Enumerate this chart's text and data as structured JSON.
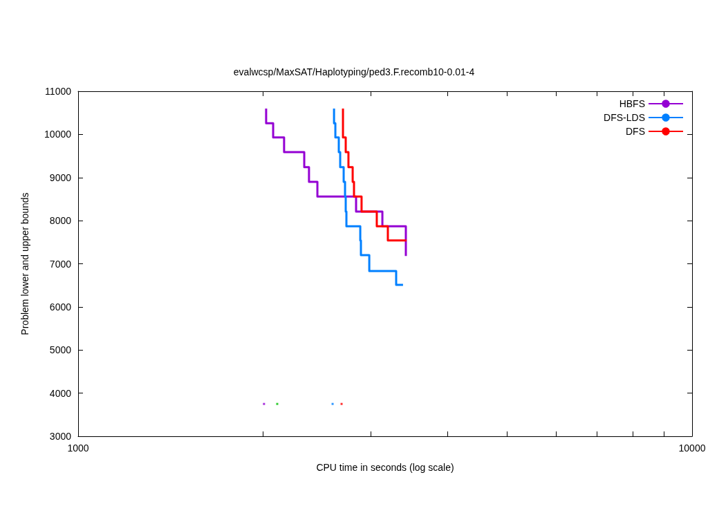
{
  "chart_data": {
    "type": "step",
    "title": "evalwcsp/MaxSAT/Haplotyping/ped3.F.recomb10-0.01-4",
    "xlabel": "CPU time in seconds (log scale)",
    "ylabel": "Problem lower and upper bounds",
    "log": "x",
    "xlim": [
      1000,
      10000
    ],
    "xticks": [
      1000,
      {
        "value": 2000,
        "label": null
      },
      {
        "value": 3000,
        "label": null
      },
      {
        "value": 4000,
        "label": null
      },
      {
        "value": 5000,
        "label": null
      },
      {
        "value": 6000,
        "label": null
      },
      {
        "value": 7000,
        "label": null
      },
      {
        "value": 8000,
        "label": null
      },
      {
        "value": 9000,
        "label": null
      },
      10000
    ],
    "ylim": [
      3000,
      11000
    ],
    "yticks": [
      3000,
      4000,
      5000,
      6000,
      7000,
      8000,
      9000,
      10000,
      11000
    ],
    "grid": false,
    "legend": "top right",
    "series": [
      {
        "name": "HBFS",
        "color": "#9400d3",
        "x": [
          2024,
          2078,
          2165,
          2335,
          2377,
          2453,
          2836,
          3130,
          3418,
          3418
        ],
        "values": [
          10600,
          10260,
          9930,
          9590,
          9240,
          8900,
          8560,
          8210,
          7870,
          7180
        ]
      },
      {
        "name": "DFS-LDS",
        "color": "#0080ff",
        "x": [
          2611,
          2624,
          2658,
          2672,
          2707,
          2721,
          2728,
          2735,
          2881,
          2888,
          2980,
          3296,
          3382
        ],
        "values": [
          10600,
          10260,
          9930,
          9590,
          9240,
          8900,
          8560,
          8210,
          7870,
          7540,
          7200,
          6830,
          6510
        ]
      },
      {
        "name": "DFS",
        "color": "#ff0000",
        "x": [
          2700,
          2728,
          2756,
          2800,
          2814,
          2895,
          3065,
          3195,
          3427
        ],
        "values": [
          10600,
          9930,
          9590,
          9240,
          8900,
          8560,
          8210,
          7870,
          7540
        ]
      },
      {
        "type": "scatter",
        "color": "#9400d3",
        "marker": "square",
        "x": [
          2008
        ],
        "values": [
          3750
        ]
      },
      {
        "type": "scatter",
        "color": "#00c000",
        "marker": "square",
        "x": [
          2110
        ],
        "values": [
          3750
        ]
      },
      {
        "type": "scatter",
        "color": "#0080ff",
        "marker": "square",
        "x": [
          2597
        ],
        "values": [
          3750
        ]
      },
      {
        "type": "scatter",
        "color": "#ff0000",
        "marker": "square",
        "x": [
          2686
        ],
        "values": [
          3750
        ]
      }
    ]
  }
}
